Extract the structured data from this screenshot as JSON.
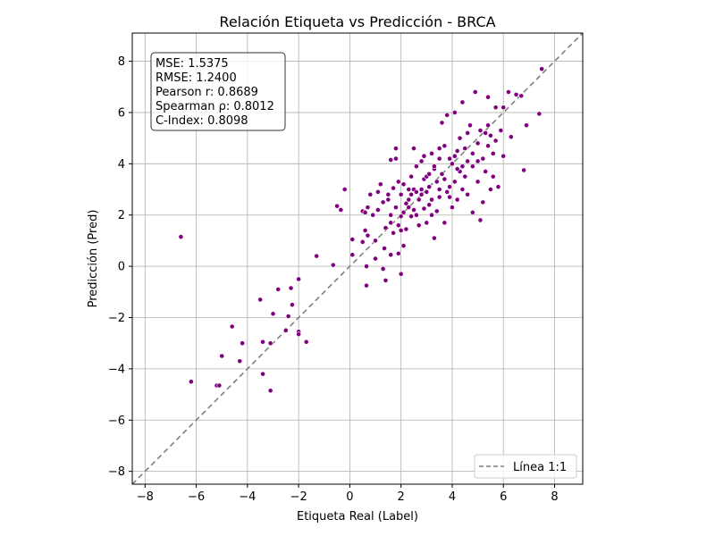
{
  "chart_data": {
    "type": "scatter",
    "title": "Relación Etiqueta vs Predicción - BRCA",
    "xlabel": "Etiqueta Real (Label)",
    "ylabel": "Predicción (Pred)",
    "xlim": [
      -8.5,
      9.1
    ],
    "ylim": [
      -8.5,
      9.1
    ],
    "xticks": [
      -8,
      -6,
      -4,
      -2,
      0,
      2,
      4,
      6,
      8
    ],
    "yticks": [
      -8,
      -6,
      -4,
      -2,
      0,
      2,
      4,
      6,
      8
    ],
    "grid": true,
    "legend": {
      "position": "bottom-right",
      "entries": [
        {
          "label": "Línea 1:1",
          "style": "dashed",
          "color": "#808080"
        }
      ]
    },
    "reference_line": {
      "name": "Línea 1:1",
      "slope": 1,
      "intercept": 0
    },
    "stats_box": [
      "MSE: 1.5375",
      "RMSE: 1.2400",
      "Pearson r: 0.8689",
      "Spearman ρ: 0.8012",
      "C-Index: 0.8098"
    ],
    "point_color": "#800080",
    "points": [
      [
        -6.6,
        1.15
      ],
      [
        -6.2,
        -4.5
      ],
      [
        -5.2,
        -4.65
      ],
      [
        -5.1,
        -4.65
      ],
      [
        -5.0,
        -3.5
      ],
      [
        -4.6,
        -2.35
      ],
      [
        -4.3,
        -3.7
      ],
      [
        -4.2,
        -3.0
      ],
      [
        -3.5,
        -1.3
      ],
      [
        -3.4,
        -4.2
      ],
      [
        -3.4,
        -2.95
      ],
      [
        -3.1,
        -4.85
      ],
      [
        -3.1,
        -3.0
      ],
      [
        -3.0,
        -1.85
      ],
      [
        -2.8,
        -0.9
      ],
      [
        -2.5,
        -2.5
      ],
      [
        -2.4,
        -1.95
      ],
      [
        -2.3,
        -0.85
      ],
      [
        -2.25,
        -1.5
      ],
      [
        -2.0,
        -0.5
      ],
      [
        -2.0,
        -2.55
      ],
      [
        -2.0,
        -2.65
      ],
      [
        -1.7,
        -2.95
      ],
      [
        -1.3,
        0.4
      ],
      [
        -0.65,
        0.05
      ],
      [
        -0.5,
        2.35
      ],
      [
        -0.35,
        2.2
      ],
      [
        -0.2,
        3.0
      ],
      [
        0.1,
        1.05
      ],
      [
        0.1,
        0.45
      ],
      [
        0.5,
        0.95
      ],
      [
        0.5,
        2.15
      ],
      [
        0.6,
        2.1
      ],
      [
        0.6,
        1.4
      ],
      [
        0.65,
        -0.75
      ],
      [
        0.65,
        0.0
      ],
      [
        0.7,
        1.2
      ],
      [
        0.7,
        2.3
      ],
      [
        0.8,
        2.8
      ],
      [
        0.9,
        2.0
      ],
      [
        1.0,
        1.0
      ],
      [
        1.1,
        2.9
      ],
      [
        1.1,
        2.2
      ],
      [
        1.2,
        3.2
      ],
      [
        1.3,
        -0.1
      ],
      [
        1.3,
        2.5
      ],
      [
        1.35,
        0.7
      ],
      [
        1.4,
        -0.55
      ],
      [
        1.4,
        1.5
      ],
      [
        1.5,
        2.8
      ],
      [
        1.6,
        1.7
      ],
      [
        1.6,
        4.15
      ],
      [
        1.6,
        2.0
      ],
      [
        1.6,
        0.45
      ],
      [
        1.7,
        3.05
      ],
      [
        1.7,
        1.3
      ],
      [
        1.8,
        2.3
      ],
      [
        1.8,
        4.6
      ],
      [
        1.8,
        4.2
      ],
      [
        1.9,
        1.6
      ],
      [
        1.9,
        0.5
      ],
      [
        1.9,
        3.3
      ],
      [
        2.0,
        1.95
      ],
      [
        2.0,
        2.8
      ],
      [
        2.0,
        -0.3
      ],
      [
        2.1,
        2.1
      ],
      [
        2.1,
        0.8
      ],
      [
        2.2,
        2.45
      ],
      [
        2.2,
        1.45
      ],
      [
        2.3,
        3.0
      ],
      [
        2.3,
        2.6
      ],
      [
        2.4,
        1.95
      ],
      [
        2.4,
        3.5
      ],
      [
        2.5,
        2.2
      ],
      [
        2.5,
        4.6
      ],
      [
        2.5,
        3.0
      ],
      [
        2.6,
        2.0
      ],
      [
        2.6,
        3.9
      ],
      [
        2.7,
        2.6
      ],
      [
        2.7,
        1.6
      ],
      [
        2.8,
        2.8
      ],
      [
        2.8,
        4.1
      ],
      [
        2.9,
        2.25
      ],
      [
        2.9,
        3.4
      ],
      [
        3.0,
        2.9
      ],
      [
        3.0,
        1.7
      ],
      [
        3.1,
        3.1
      ],
      [
        3.1,
        2.4
      ],
      [
        3.2,
        4.4
      ],
      [
        3.2,
        2.6
      ],
      [
        3.3,
        3.8
      ],
      [
        3.3,
        1.1
      ],
      [
        3.4,
        2.15
      ],
      [
        3.4,
        3.3
      ],
      [
        3.5,
        4.2
      ],
      [
        3.5,
        2.7
      ],
      [
        3.6,
        5.6
      ],
      [
        3.6,
        3.6
      ],
      [
        3.7,
        4.7
      ],
      [
        3.7,
        1.7
      ],
      [
        3.8,
        2.9
      ],
      [
        3.8,
        5.9
      ],
      [
        3.9,
        3.1
      ],
      [
        3.9,
        4.2
      ],
      [
        4.0,
        4.0
      ],
      [
        4.0,
        2.3
      ],
      [
        4.1,
        6.0
      ],
      [
        4.1,
        3.3
      ],
      [
        4.2,
        4.5
      ],
      [
        4.2,
        2.6
      ],
      [
        4.3,
        3.7
      ],
      [
        4.3,
        5.0
      ],
      [
        4.4,
        3.9
      ],
      [
        4.4,
        6.4
      ],
      [
        4.5,
        4.6
      ],
      [
        4.5,
        3.5
      ],
      [
        4.6,
        4.1
      ],
      [
        4.6,
        2.8
      ],
      [
        4.7,
        5.5
      ],
      [
        4.8,
        3.9
      ],
      [
        4.8,
        2.1
      ],
      [
        4.9,
        6.8
      ],
      [
        5.0,
        4.8
      ],
      [
        5.0,
        3.3
      ],
      [
        5.1,
        1.8
      ],
      [
        5.1,
        5.3
      ],
      [
        5.2,
        4.2
      ],
      [
        5.2,
        2.5
      ],
      [
        5.3,
        5.2
      ],
      [
        5.3,
        3.7
      ],
      [
        5.4,
        6.6
      ],
      [
        5.4,
        4.7
      ],
      [
        5.5,
        3.0
      ],
      [
        5.5,
        5.1
      ],
      [
        5.6,
        4.4
      ],
      [
        5.6,
        3.5
      ],
      [
        5.7,
        6.2
      ],
      [
        5.7,
        4.9
      ],
      [
        5.8,
        3.1
      ],
      [
        5.9,
        5.3
      ],
      [
        6.0,
        4.3
      ],
      [
        6.0,
        6.2
      ],
      [
        6.2,
        6.8
      ],
      [
        6.3,
        5.05
      ],
      [
        6.5,
        6.7
      ],
      [
        6.7,
        6.65
      ],
      [
        6.8,
        3.75
      ],
      [
        6.9,
        5.5
      ],
      [
        7.4,
        5.95
      ],
      [
        7.5,
        7.7
      ],
      [
        3.0,
        3.5
      ],
      [
        2.8,
        3.0
      ],
      [
        3.3,
        3.9
      ],
      [
        3.5,
        3.0
      ],
      [
        4.1,
        4.3
      ],
      [
        3.9,
        2.7
      ],
      [
        2.3,
        2.3
      ],
      [
        2.6,
        2.9
      ],
      [
        3.2,
        2.0
      ],
      [
        4.4,
        3.0
      ],
      [
        5.0,
        4.1
      ],
      [
        4.6,
        5.2
      ],
      [
        3.7,
        3.4
      ],
      [
        2.1,
        3.2
      ],
      [
        1.5,
        2.6
      ],
      [
        2.9,
        4.3
      ],
      [
        4.2,
        3.8
      ],
      [
        5.4,
        5.5
      ],
      [
        1.0,
        0.3
      ],
      [
        4.8,
        4.4
      ],
      [
        3.5,
        4.6
      ],
      [
        2.4,
        2.8
      ],
      [
        3.1,
        3.6
      ],
      [
        2.0,
        1.4
      ]
    ]
  }
}
